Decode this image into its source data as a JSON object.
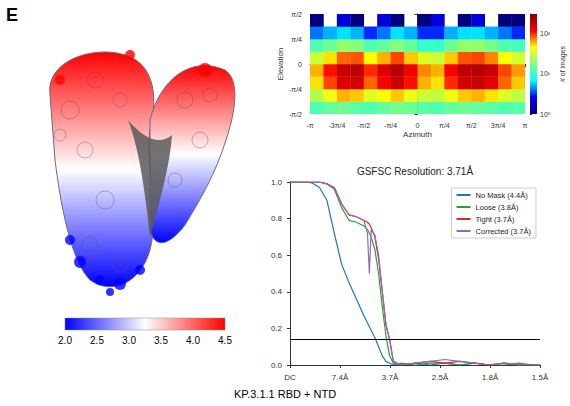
{
  "panel_label": "E",
  "caption": "KP.3.1.1 RBD + NTD",
  "chart_data": [
    {
      "type": "density_map",
      "colorbar": {
        "range": [
          2,
          4.5
        ],
        "ticks": [
          {
            "value": 2,
            "label": "2.0"
          },
          {
            "value": 2.5,
            "label": "2.5"
          },
          {
            "value": 3,
            "label": "3.0"
          },
          {
            "value": 3.5,
            "label": "3.5"
          },
          {
            "value": 4,
            "label": "4.0"
          },
          {
            "value": 4.5,
            "label": "4.5"
          }
        ],
        "colors": [
          "#0000ff",
          "#ffffff",
          "#ff0000"
        ]
      }
    },
    {
      "type": "heatmap",
      "xlabel": "Azimuth",
      "ylabel": "Elevation",
      "xlim": [
        -3.1416,
        3.1416
      ],
      "ylim": [
        -1.5708,
        1.5708
      ],
      "xticks": [
        {
          "value": -3.1416,
          "label": "-π"
        },
        {
          "value": -2.3562,
          "label": "-3π/4"
        },
        {
          "value": -1.5708,
          "label": "-π/2"
        },
        {
          "value": -0.7854,
          "label": "-π/4"
        },
        0,
        {
          "value": 0.7854,
          "label": "π/4"
        },
        {
          "value": 1.5708,
          "label": "π/2"
        },
        {
          "value": 2.3562,
          "label": "3π/4"
        },
        {
          "value": 3.1416,
          "label": "π"
        }
      ],
      "yticks": [
        {
          "value": -1.5708,
          "label": "-π/2"
        },
        {
          "value": -0.7854,
          "label": "-π/4"
        },
        0,
        {
          "value": 0.7854,
          "label": "π/4"
        },
        {
          "value": 1.5708,
          "label": "π/2"
        }
      ],
      "x_bins": [
        -3.1416,
        -2.7489,
        -2.3562,
        -1.9635,
        -1.5708,
        -1.1781,
        -0.7854,
        -0.3927,
        0,
        0.3927,
        0.7854,
        1.1781,
        1.5708,
        1.9635,
        2.3562,
        2.7489,
        3.1416
      ],
      "y_bins": [
        -1.5708,
        -1.1781,
        -0.7854,
        -0.3927,
        0,
        0.3927,
        0.7854,
        1.1781,
        1.5708
      ],
      "cells": [
        [
          12,
          14,
          15,
          13,
          12,
          14,
          16,
          15,
          13,
          12,
          14,
          15,
          14,
          13,
          12,
          13
        ],
        [
          25,
          40,
          60,
          55,
          35,
          45,
          55,
          40,
          30,
          28,
          40,
          55,
          60,
          50,
          35,
          28
        ],
        [
          50,
          90,
          150,
          160,
          80,
          120,
          170,
          110,
          60,
          50,
          100,
          160,
          180,
          140,
          80,
          55
        ],
        [
          60,
          110,
          180,
          190,
          100,
          150,
          200,
          130,
          70,
          60,
          120,
          190,
          200,
          170,
          90,
          65
        ],
        [
          30,
          50,
          80,
          85,
          45,
          60,
          90,
          55,
          35,
          30,
          55,
          85,
          90,
          70,
          45,
          32
        ],
        [
          12,
          15,
          20,
          18,
          12,
          14,
          18,
          14,
          10,
          10,
          15,
          20,
          20,
          16,
          12,
          11
        ],
        [
          4,
          5,
          6,
          5,
          3,
          4,
          6,
          5,
          3,
          3,
          5,
          6,
          6,
          5,
          4,
          3
        ],
        [
          1,
          null,
          2,
          1,
          null,
          2,
          1,
          null,
          1,
          2,
          null,
          1,
          2,
          null,
          1,
          1
        ]
      ],
      "colorbar": {
        "label": "# of images",
        "log": true,
        "range": [
          1,
          300
        ],
        "ticks": [
          {
            "value": 1,
            "label": "10⁰"
          },
          {
            "value": 10,
            "label": "10¹"
          },
          {
            "value": 100,
            "label": "10²"
          }
        ],
        "colors": [
          "#00007f",
          "#0000ff",
          "#00ffff",
          "#7fff7f",
          "#ffff00",
          "#ff0000",
          "#7f0000"
        ]
      }
    },
    {
      "type": "line",
      "title": "GSFSC Resolution: 3.71Å",
      "x": [
        0,
        0.02,
        0.04,
        0.06,
        0.08,
        0.1,
        0.12,
        0.14,
        0.16,
        0.18,
        0.2,
        0.21,
        0.215,
        0.22,
        0.23,
        0.24,
        0.25,
        0.26,
        0.27,
        0.28,
        0.29,
        0.3,
        0.34,
        0.38,
        0.42,
        0.46,
        0.5,
        0.54,
        0.58,
        0.62,
        0.66,
        0.6775
      ],
      "series": [
        {
          "name": "No Mask (4.4Å)",
          "color": "#1f77b4",
          "values": [
            1,
            1,
            1,
            0.995,
            0.97,
            0.9,
            0.72,
            0.55,
            0.45,
            0.36,
            0.27,
            0.23,
            0.21,
            0.19,
            0.15,
            0.1,
            0.05,
            0.02,
            0.01,
            0,
            0.01,
            0,
            0.01,
            0,
            0.01,
            0,
            0.01,
            0,
            0.01,
            0,
            0,
            0
          ]
        },
        {
          "name": "Loose (3.8Å)",
          "color": "#2ca02c",
          "values": [
            1,
            1,
            1,
            1,
            1,
            0.99,
            0.96,
            0.86,
            0.79,
            0.78,
            0.76,
            0.74,
            0.72,
            0.7,
            0.63,
            0.5,
            0.32,
            0.16,
            0.05,
            0.01,
            0,
            0.01,
            0,
            0.01,
            0.01,
            0,
            0.01,
            0,
            0,
            0.01,
            0,
            0
          ]
        },
        {
          "name": "Tight (3.7Å)",
          "color": "#d62728",
          "values": [
            1,
            1,
            1,
            1,
            1,
            0.99,
            0.97,
            0.88,
            0.82,
            0.81,
            0.79,
            0.78,
            0.77,
            0.75,
            0.7,
            0.58,
            0.4,
            0.22,
            0.14,
            0.02,
            0.01,
            0,
            0.01,
            0.02,
            0.01,
            0.02,
            0.01,
            0,
            0.01,
            0,
            0,
            0
          ]
        },
        {
          "name": "Corrected (3.7Å)",
          "color": "#9467bd",
          "values": [
            1,
            1,
            1,
            1,
            1,
            0.99,
            0.97,
            0.88,
            0.82,
            0.81,
            0.79,
            0.72,
            0.5,
            0.74,
            0.71,
            0.6,
            0.41,
            0.22,
            0.14,
            0.02,
            0.01,
            0,
            0.01,
            0.02,
            0.03,
            0.02,
            0.01,
            0,
            0.01,
            0,
            0,
            0
          ]
        }
      ],
      "xlim": [
        0,
        0.6775
      ],
      "xticks": [
        {
          "value": 0,
          "label": "DC"
        },
        {
          "value": 0.1355,
          "label": "7.4Å"
        },
        {
          "value": 0.271,
          "label": "3.7Å"
        },
        {
          "value": 0.4065,
          "label": "2.5Å"
        },
        {
          "value": 0.542,
          "label": "1.8Å"
        },
        {
          "value": 0.6775,
          "label": "1.5Å"
        }
      ],
      "ylim": [
        0,
        1
      ],
      "yticks": [
        {
          "value": 0,
          "label": "0.0"
        },
        {
          "value": 0.2,
          "label": "0.2"
        },
        {
          "value": 0.4,
          "label": "0.4"
        },
        {
          "value": 0.6,
          "label": "0.6"
        },
        {
          "value": 0.8,
          "label": "0.8"
        },
        {
          "value": 1,
          "label": "1.0"
        }
      ],
      "threshold": 0.143,
      "legend": "upper right",
      "grid": false
    }
  ]
}
